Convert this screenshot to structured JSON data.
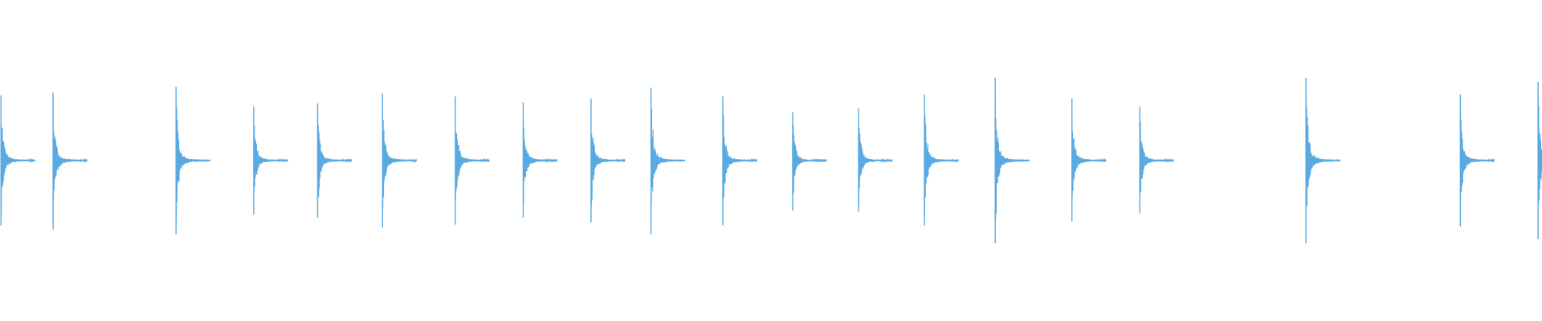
{
  "waveform": {
    "color": "#5aaae2"
  }
}
